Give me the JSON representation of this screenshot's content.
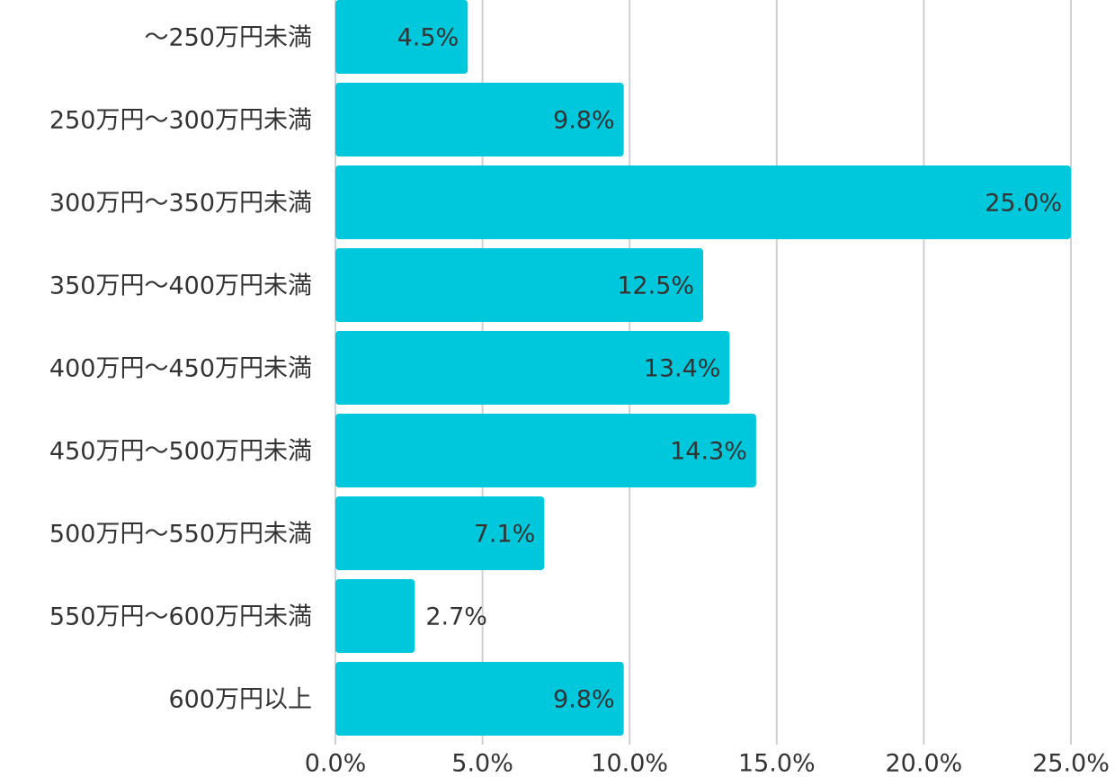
{
  "chart_data": {
    "type": "bar",
    "orientation": "horizontal",
    "categories": [
      "～250万円未満",
      "250万円～300万円未満",
      "300万円～350万円未満",
      "350万円～400万円未満",
      "400万円～450万円未満",
      "450万円～500万円未満",
      "500万円～550万円未満",
      "550万円～600万円未満",
      "600万円以上"
    ],
    "values": [
      4.5,
      9.8,
      25.0,
      12.5,
      13.4,
      14.3,
      7.1,
      2.7,
      9.8
    ],
    "value_labels": [
      "4.5%",
      "9.8%",
      "25.0%",
      "12.5%",
      "13.4%",
      "14.3%",
      "7.1%",
      "2.7%",
      "9.8%"
    ],
    "color": "#00c8dc",
    "xlim": [
      0,
      25
    ],
    "xticks": [
      {
        "value": 0,
        "label": "0.0%"
      },
      {
        "value": 5,
        "label": "5.0%"
      },
      {
        "value": 10,
        "label": "10.0%"
      },
      {
        "value": 15,
        "label": "15.0%"
      },
      {
        "value": 20,
        "label": "20.0%"
      },
      {
        "value": 25,
        "label": "25.0%"
      }
    ],
    "grid": true
  }
}
